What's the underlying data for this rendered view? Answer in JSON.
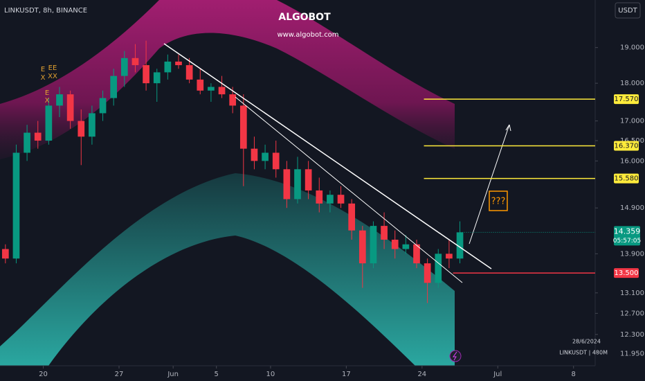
{
  "chart_data": {
    "type": "candlestick",
    "title": "LINKUSDT, 8h, BINANCE",
    "watermark_title": "ALGOBOT",
    "watermark_url": "www.algobot.com",
    "currency": "USDT",
    "countdown": "05:57:05",
    "date_stamp": "28/6/2024",
    "symbol_info": "LINKUSDT | 480M",
    "target_label": "???",
    "signals": [
      "E",
      "X",
      "E",
      "X",
      "EE",
      "XX"
    ],
    "log_scale": true,
    "up_color": "#089981",
    "down_color": "#f23645",
    "x": [
      "2024-05-16",
      "2024-05-17",
      "2024-05-18",
      "2024-05-19",
      "2024-05-20",
      "2024-05-21",
      "2024-05-22",
      "2024-05-23",
      "2024-05-24",
      "2024-05-25",
      "2024-05-26",
      "2024-05-27",
      "2024-05-28",
      "2024-05-29",
      "2024-05-30",
      "2024-05-31",
      "2024-06-01",
      "2024-06-02",
      "2024-06-03",
      "2024-06-04",
      "2024-06-05",
      "2024-06-06",
      "2024-06-07",
      "2024-06-08",
      "2024-06-09",
      "2024-06-10",
      "2024-06-11",
      "2024-06-12",
      "2024-06-13",
      "2024-06-14",
      "2024-06-15",
      "2024-06-16",
      "2024-06-17",
      "2024-06-18",
      "2024-06-19",
      "2024-06-20",
      "2024-06-21",
      "2024-06-22",
      "2024-06-23",
      "2024-06-24",
      "2024-06-25",
      "2024-06-26",
      "2024-06-27"
    ],
    "open": [
      14.0,
      13.8,
      16.2,
      16.7,
      16.5,
      17.4,
      17.7,
      17.0,
      16.6,
      17.2,
      17.6,
      18.2,
      18.7,
      18.5,
      18.0,
      18.3,
      18.6,
      18.5,
      18.1,
      17.8,
      17.9,
      17.7,
      17.4,
      16.3,
      16.0,
      16.2,
      15.8,
      15.1,
      15.8,
      15.3,
      15.0,
      15.2,
      15.0,
      14.4,
      13.7,
      14.5,
      14.2,
      14.0,
      14.1,
      13.7,
      13.3,
      13.9,
      13.8
    ],
    "high": [
      14.1,
      16.4,
      16.9,
      17.0,
      17.6,
      17.9,
      17.8,
      17.3,
      17.4,
      17.8,
      18.4,
      18.9,
      19.1,
      19.2,
      18.4,
      18.8,
      18.8,
      18.7,
      18.4,
      18.0,
      18.2,
      17.9,
      17.7,
      16.6,
      16.4,
      16.5,
      16.0,
      16.1,
      16.0,
      15.6,
      15.3,
      15.4,
      15.1,
      14.5,
      14.6,
      14.8,
      14.4,
      14.3,
      14.2,
      13.8,
      14.0,
      14.2,
      14.6
    ],
    "low": [
      13.7,
      13.7,
      16.0,
      16.3,
      16.4,
      17.1,
      16.8,
      15.9,
      16.4,
      17.0,
      17.4,
      17.9,
      18.3,
      17.8,
      17.5,
      18.1,
      18.4,
      18.0,
      17.7,
      17.5,
      17.6,
      17.2,
      15.4,
      15.8,
      15.8,
      15.6,
      14.9,
      15.0,
      15.1,
      14.8,
      14.8,
      14.9,
      14.2,
      13.2,
      13.6,
      14.0,
      13.8,
      13.9,
      13.6,
      12.9,
      13.2,
      13.6,
      13.7
    ],
    "close": [
      13.8,
      16.2,
      16.7,
      16.5,
      17.4,
      17.7,
      17.0,
      16.6,
      17.2,
      17.6,
      18.2,
      18.7,
      18.5,
      18.0,
      18.3,
      18.6,
      18.5,
      18.1,
      17.8,
      17.9,
      17.7,
      17.4,
      16.3,
      16.0,
      16.2,
      15.8,
      15.1,
      15.8,
      15.3,
      15.0,
      15.2,
      15.0,
      14.4,
      13.7,
      14.5,
      14.2,
      14.0,
      14.1,
      13.7,
      13.3,
      13.9,
      13.8,
      14.359
    ],
    "xlim": [
      "2024-05-16",
      "2024-07-10"
    ],
    "xticks": [
      {
        "value": "2024-05-20",
        "label": "20"
      },
      {
        "value": "2024-05-27",
        "label": "27"
      },
      {
        "value": "2024-06-01",
        "label": "Jun"
      },
      {
        "value": "2024-06-05",
        "label": "5"
      },
      {
        "value": "2024-06-10",
        "label": "10"
      },
      {
        "value": "2024-06-17",
        "label": "17"
      },
      {
        "value": "2024-06-24",
        "label": "24"
      },
      {
        "value": "2024-07-01",
        "label": "Jul"
      },
      {
        "value": "2024-07-08",
        "label": "8"
      }
    ],
    "ylim": [
      11.73,
      20.42
    ],
    "yticks": [
      {
        "value": 19,
        "label": "19.000"
      },
      {
        "value": 18,
        "label": "18.000"
      },
      {
        "value": 17,
        "label": "17.000"
      },
      {
        "value": 16.5,
        "label": "16.500"
      },
      {
        "value": 16,
        "label": "16.000"
      },
      {
        "value": 14.9,
        "label": "14.900"
      },
      {
        "value": 13.9,
        "label": "13.900"
      },
      {
        "value": 13.1,
        "label": "13.100"
      },
      {
        "value": 12.7,
        "label": "12.700"
      },
      {
        "value": 12.3,
        "label": "12.300"
      },
      {
        "value": 11.95,
        "label": "11.950"
      }
    ],
    "levels": [
      {
        "value": 17.57,
        "label": "17.570",
        "color": "#ffeb3b"
      },
      {
        "value": 16.37,
        "label": "16.370",
        "color": "#ffeb3b"
      },
      {
        "value": 15.58,
        "label": "15.580",
        "color": "#ffeb3b"
      },
      {
        "value": 13.5,
        "label": "13.500",
        "color": "#f23645"
      }
    ]
  }
}
